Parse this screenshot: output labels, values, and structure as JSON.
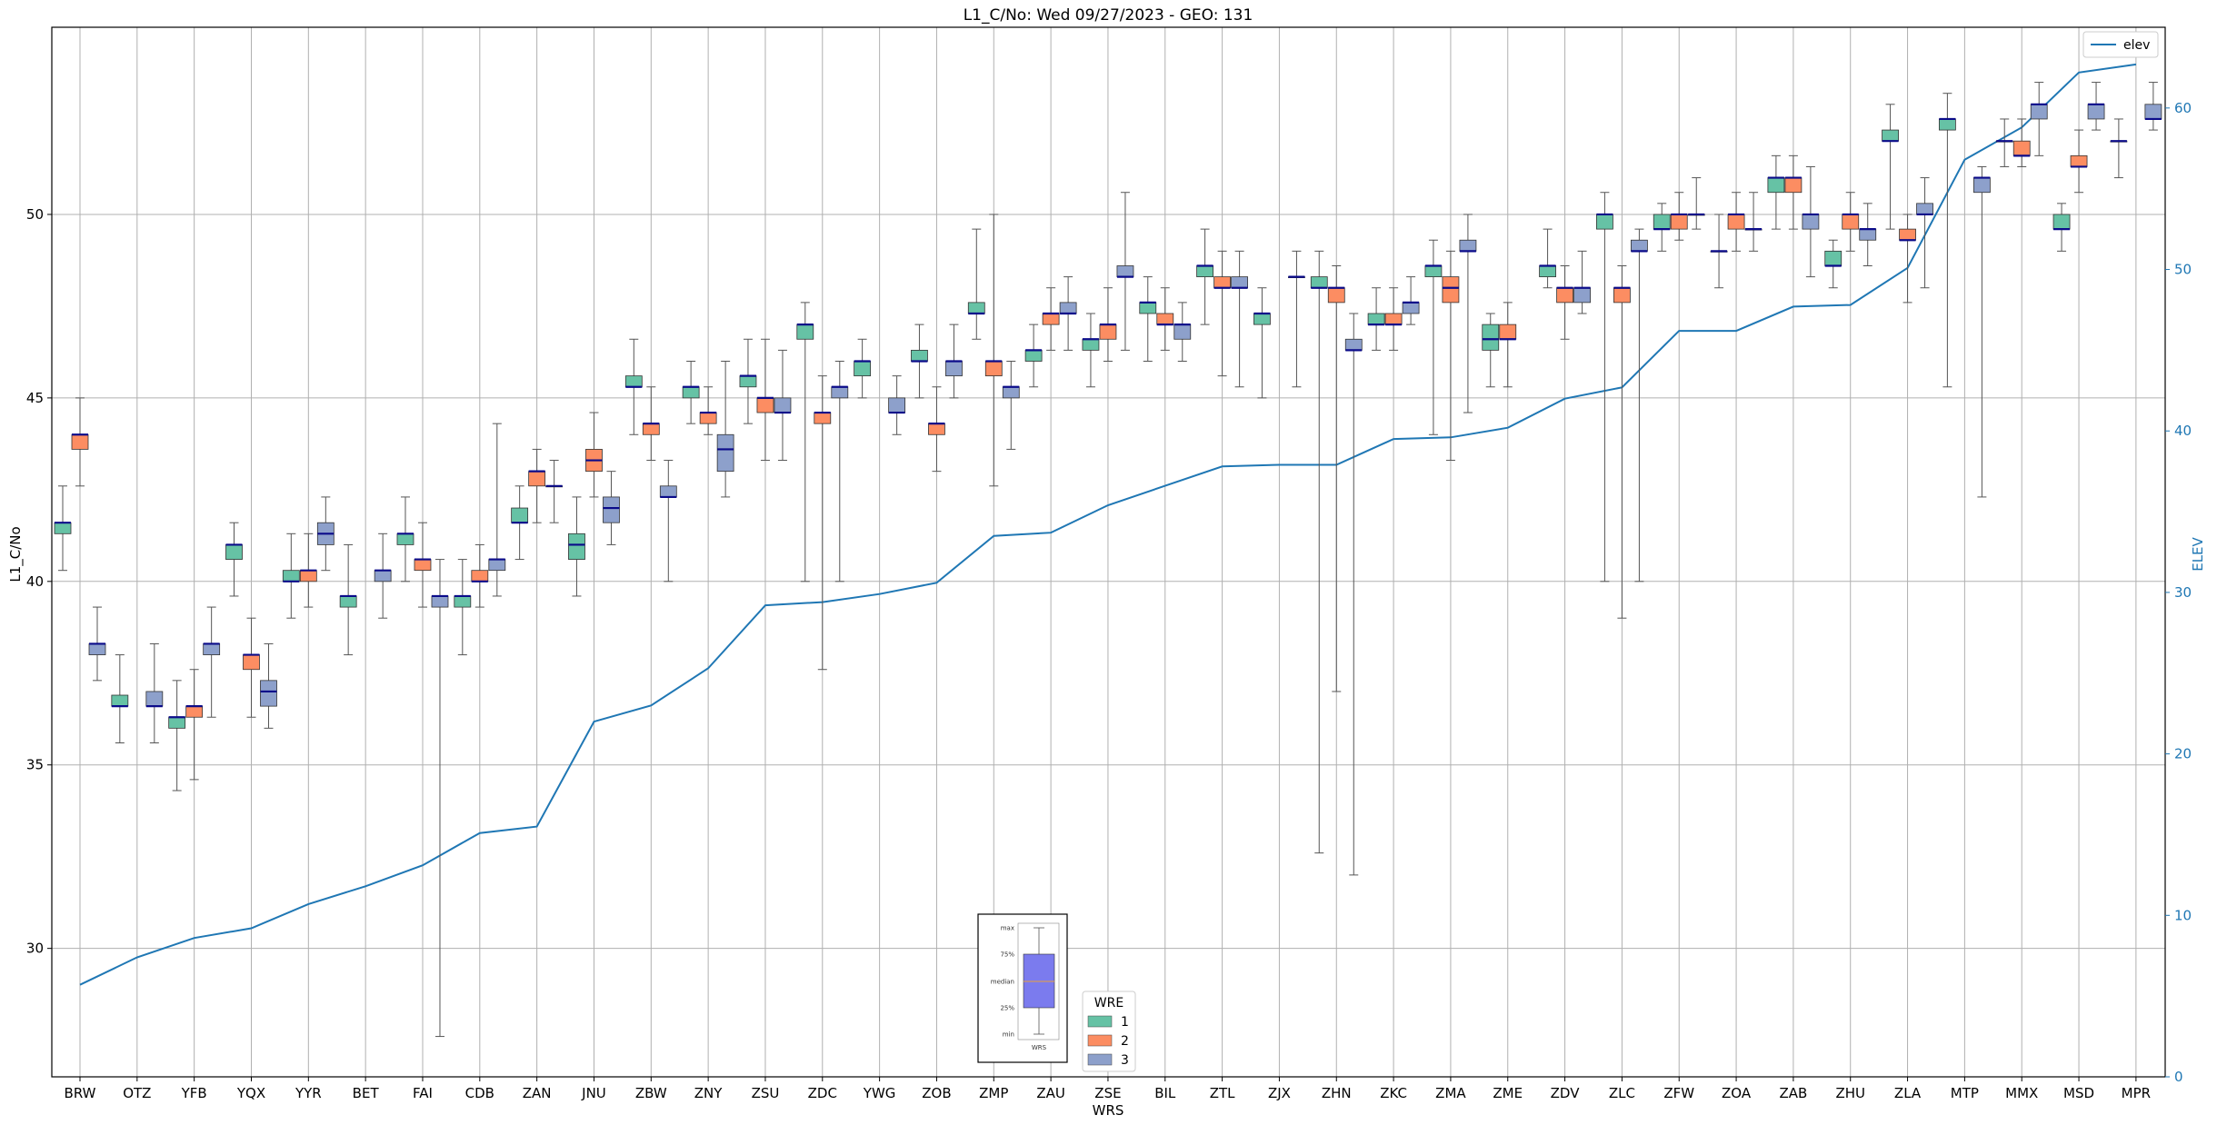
{
  "chart_data": {
    "type": "box",
    "title": "L1_C/No: Wed 09/27/2023 - GEO: 131",
    "xlabel": "WRS",
    "ylabel": "L1_C/No",
    "y2label": "ELEV",
    "ylim": [
      26.5,
      55.1
    ],
    "y2lim": [
      0,
      65
    ],
    "yticks": [
      30,
      35,
      40,
      45,
      50
    ],
    "y2ticks": [
      0,
      10,
      20,
      30,
      40,
      50,
      60
    ],
    "grid": true,
    "categories": [
      "BRW",
      "OTZ",
      "YFB",
      "YQX",
      "YYR",
      "BET",
      "FAI",
      "CDB",
      "ZAN",
      "JNU",
      "ZBW",
      "ZNY",
      "ZSU",
      "ZDC",
      "YWG",
      "ZOB",
      "ZMP",
      "ZAU",
      "ZSE",
      "BIL",
      "ZTL",
      "ZJX",
      "ZHN",
      "ZKC",
      "ZMA",
      "ZME",
      "ZDV",
      "ZLC",
      "ZFW",
      "ZOA",
      "ZAB",
      "ZHU",
      "ZLA",
      "MTP",
      "MMX",
      "MSD",
      "MPR"
    ],
    "legend": {
      "title": "WRE",
      "placement": "bottom-center",
      "entries": [
        {
          "label": "1",
          "color": "#66c2a5"
        },
        {
          "label": "2",
          "color": "#fc8d62"
        },
        {
          "label": "3",
          "color": "#8da0cb"
        }
      ]
    },
    "line_legend": {
      "label": "elev",
      "color": "#1f77b4",
      "placement": "top-right"
    },
    "elev": [
      5.7,
      7.4,
      8.6,
      9.2,
      10.7,
      11.8,
      13.1,
      15.1,
      15.5,
      22.0,
      23.0,
      25.3,
      29.2,
      29.4,
      29.9,
      30.6,
      33.5,
      33.7,
      35.4,
      36.6,
      37.8,
      37.9,
      37.9,
      39.5,
      39.6,
      40.2,
      42.0,
      42.7,
      46.2,
      46.2,
      47.7,
      47.8,
      50.1,
      56.8,
      58.8,
      62.2,
      62.7
    ],
    "wre1": {
      "name": "1",
      "boxes": [
        {
          "cat": "BRW",
          "min": 40.3,
          "q1": 41.3,
          "median": 41.6,
          "q3": 41.6,
          "max": 42.6
        },
        {
          "cat": "OTZ",
          "min": 35.6,
          "q1": 36.6,
          "median": 36.6,
          "q3": 36.9,
          "max": 38.0
        },
        {
          "cat": "YFB",
          "min": 34.3,
          "q1": 36.0,
          "median": 36.3,
          "q3": 36.3,
          "max": 37.3
        },
        {
          "cat": "YQX",
          "min": 39.6,
          "q1": 40.6,
          "median": 41.0,
          "q3": 41.0,
          "max": 41.6
        },
        {
          "cat": "YYR",
          "min": 39.0,
          "q1": 40.0,
          "median": 40.0,
          "q3": 40.3,
          "max": 41.3
        },
        {
          "cat": "BET",
          "min": 38.0,
          "q1": 39.3,
          "median": 39.6,
          "q3": 39.6,
          "max": 41.0
        },
        {
          "cat": "FAI",
          "min": 40.0,
          "q1": 41.0,
          "median": 41.3,
          "q3": 41.3,
          "max": 42.3
        },
        {
          "cat": "CDB",
          "min": 38.0,
          "q1": 39.3,
          "median": 39.6,
          "q3": 39.6,
          "max": 40.6
        },
        {
          "cat": "ZAN",
          "min": 40.6,
          "q1": 41.6,
          "median": 41.6,
          "q3": 42.0,
          "max": 42.6
        },
        {
          "cat": "JNU",
          "min": 39.6,
          "q1": 40.6,
          "median": 41.0,
          "q3": 41.3,
          "max": 42.3
        },
        {
          "cat": "ZBW",
          "min": 44.0,
          "q1": 45.3,
          "median": 45.3,
          "q3": 45.6,
          "max": 46.6
        },
        {
          "cat": "ZNY",
          "min": 44.3,
          "q1": 45.0,
          "median": 45.3,
          "q3": 45.3,
          "max": 46.0
        },
        {
          "cat": "ZSU",
          "min": 44.3,
          "q1": 45.3,
          "median": 45.6,
          "q3": 45.6,
          "max": 46.6
        },
        {
          "cat": "ZDC",
          "min": 40.0,
          "q1": 46.6,
          "median": 47.0,
          "q3": 47.0,
          "max": 47.6
        },
        {
          "cat": "YWG",
          "min": 45.0,
          "q1": 45.6,
          "median": 46.0,
          "q3": 46.0,
          "max": 46.6
        },
        {
          "cat": "ZOB",
          "min": 45.0,
          "q1": 46.0,
          "median": 46.0,
          "q3": 46.3,
          "max": 47.0
        },
        {
          "cat": "ZMP",
          "min": 46.6,
          "q1": 47.3,
          "median": 47.3,
          "q3": 47.6,
          "max": 49.6
        },
        {
          "cat": "ZAU",
          "min": 45.3,
          "q1": 46.0,
          "median": 46.3,
          "q3": 46.3,
          "max": 47.0
        },
        {
          "cat": "ZSE",
          "min": 45.3,
          "q1": 46.3,
          "median": 46.6,
          "q3": 46.6,
          "max": 47.3
        },
        {
          "cat": "BIL",
          "min": 46.0,
          "q1": 47.3,
          "median": 47.6,
          "q3": 47.6,
          "max": 48.3
        },
        {
          "cat": "ZTL",
          "min": 47.0,
          "q1": 48.3,
          "median": 48.6,
          "q3": 48.6,
          "max": 49.6
        },
        {
          "cat": "ZJX",
          "min": 45.0,
          "q1": 47.0,
          "median": 47.3,
          "q3": 47.3,
          "max": 48.0
        },
        {
          "cat": "ZHN",
          "min": 32.6,
          "q1": 48.0,
          "median": 48.0,
          "q3": 48.3,
          "max": 49.0
        },
        {
          "cat": "ZKC",
          "min": 46.3,
          "q1": 47.0,
          "median": 47.0,
          "q3": 47.3,
          "max": 48.0
        },
        {
          "cat": "ZMA",
          "min": 44.0,
          "q1": 48.3,
          "median": 48.6,
          "q3": 48.6,
          "max": 49.3
        },
        {
          "cat": "ZME",
          "min": 45.3,
          "q1": 46.3,
          "median": 46.6,
          "q3": 47.0,
          "max": 47.3
        },
        {
          "cat": "ZDV",
          "min": 48.0,
          "q1": 48.3,
          "median": 48.6,
          "q3": 48.6,
          "max": 49.6
        },
        {
          "cat": "ZLC",
          "min": 40.0,
          "q1": 49.6,
          "median": 50.0,
          "q3": 50.0,
          "max": 50.6
        },
        {
          "cat": "ZFW",
          "min": 49.0,
          "q1": 49.6,
          "median": 49.6,
          "q3": 50.0,
          "max": 50.3
        },
        {
          "cat": "ZOA",
          "min": 48.0,
          "q1": 49.0,
          "median": 49.0,
          "q3": 49.0,
          "max": 50.0
        },
        {
          "cat": "ZAB",
          "min": 49.6,
          "q1": 50.6,
          "median": 51.0,
          "q3": 51.0,
          "max": 51.6
        },
        {
          "cat": "ZHU",
          "min": 48.0,
          "q1": 48.6,
          "median": 48.6,
          "q3": 49.0,
          "max": 49.3
        },
        {
          "cat": "ZLA",
          "min": 49.6,
          "q1": 52.0,
          "median": 52.0,
          "q3": 52.3,
          "max": 53.0
        },
        {
          "cat": "MTP",
          "min": 45.3,
          "q1": 52.3,
          "median": 52.6,
          "q3": 52.6,
          "max": 53.3
        },
        {
          "cat": "MMX",
          "min": 51.3,
          "q1": 52.0,
          "median": 52.0,
          "q3": 52.0,
          "max": 52.6
        },
        {
          "cat": "MSD",
          "min": 49.0,
          "q1": 49.6,
          "median": 49.6,
          "q3": 50.0,
          "max": 50.3
        },
        {
          "cat": "MPR",
          "min": 51.0,
          "q1": 52.0,
          "median": 52.0,
          "q3": 52.0,
          "max": 52.6
        }
      ]
    },
    "wre2": {
      "name": "2",
      "boxes": [
        {
          "cat": "BRW",
          "min": 42.6,
          "q1": 43.6,
          "median": 44.0,
          "q3": 44.0,
          "max": 45.0
        },
        {
          "cat": "YFB",
          "min": 34.6,
          "q1": 36.3,
          "median": 36.6,
          "q3": 36.6,
          "max": 37.6
        },
        {
          "cat": "YQX",
          "min": 36.3,
          "q1": 37.6,
          "median": 38.0,
          "q3": 38.0,
          "max": 39.0
        },
        {
          "cat": "YYR",
          "min": 39.3,
          "q1": 40.0,
          "median": 40.3,
          "q3": 40.3,
          "max": 41.3
        },
        {
          "cat": "FAI",
          "min": 39.3,
          "q1": 40.3,
          "median": 40.6,
          "q3": 40.6,
          "max": 41.6
        },
        {
          "cat": "CDB",
          "min": 39.3,
          "q1": 40.0,
          "median": 40.0,
          "q3": 40.3,
          "max": 41.0
        },
        {
          "cat": "ZAN",
          "min": 41.6,
          "q1": 42.6,
          "median": 43.0,
          "q3": 43.0,
          "max": 43.6
        },
        {
          "cat": "JNU",
          "min": 42.3,
          "q1": 43.0,
          "median": 43.3,
          "q3": 43.6,
          "max": 44.6
        },
        {
          "cat": "ZBW",
          "min": 43.3,
          "q1": 44.0,
          "median": 44.3,
          "q3": 44.3,
          "max": 45.3
        },
        {
          "cat": "ZNY",
          "min": 44.0,
          "q1": 44.3,
          "median": 44.6,
          "q3": 44.6,
          "max": 45.3
        },
        {
          "cat": "ZSU",
          "min": 43.3,
          "q1": 44.6,
          "median": 45.0,
          "q3": 45.0,
          "max": 46.6
        },
        {
          "cat": "ZDC",
          "min": 37.6,
          "q1": 44.3,
          "median": 44.6,
          "q3": 44.6,
          "max": 45.6
        },
        {
          "cat": "ZOB",
          "min": 43.0,
          "q1": 44.0,
          "median": 44.3,
          "q3": 44.3,
          "max": 45.3
        },
        {
          "cat": "ZMP",
          "min": 42.6,
          "q1": 45.6,
          "median": 46.0,
          "q3": 46.0,
          "max": 50.0
        },
        {
          "cat": "ZAU",
          "min": 46.3,
          "q1": 47.0,
          "median": 47.3,
          "q3": 47.3,
          "max": 48.0
        },
        {
          "cat": "ZSE",
          "min": 46.0,
          "q1": 46.6,
          "median": 47.0,
          "q3": 47.0,
          "max": 48.0
        },
        {
          "cat": "BIL",
          "min": 46.3,
          "q1": 47.0,
          "median": 47.0,
          "q3": 47.3,
          "max": 48.0
        },
        {
          "cat": "ZTL",
          "min": 45.6,
          "q1": 48.0,
          "median": 48.0,
          "q3": 48.3,
          "max": 49.0
        },
        {
          "cat": "ZHN",
          "min": 37.0,
          "q1": 47.6,
          "median": 48.0,
          "q3": 48.0,
          "max": 48.6
        },
        {
          "cat": "ZKC",
          "min": 46.3,
          "q1": 47.0,
          "median": 47.0,
          "q3": 47.3,
          "max": 48.0
        },
        {
          "cat": "ZMA",
          "min": 43.3,
          "q1": 47.6,
          "median": 48.0,
          "q3": 48.3,
          "max": 49.0
        },
        {
          "cat": "ZME",
          "min": 45.3,
          "q1": 46.6,
          "median": 46.6,
          "q3": 47.0,
          "max": 47.6
        },
        {
          "cat": "ZDV",
          "min": 46.6,
          "q1": 47.6,
          "median": 48.0,
          "q3": 48.0,
          "max": 48.6
        },
        {
          "cat": "ZLC",
          "min": 39.0,
          "q1": 47.6,
          "median": 48.0,
          "q3": 48.0,
          "max": 48.6
        },
        {
          "cat": "ZFW",
          "min": 49.3,
          "q1": 49.6,
          "median": 50.0,
          "q3": 50.0,
          "max": 50.6
        },
        {
          "cat": "ZOA",
          "min": 49.0,
          "q1": 49.6,
          "median": 50.0,
          "q3": 50.0,
          "max": 50.6
        },
        {
          "cat": "ZAB",
          "min": 49.6,
          "q1": 50.6,
          "median": 51.0,
          "q3": 51.0,
          "max": 51.6
        },
        {
          "cat": "ZHU",
          "min": 49.0,
          "q1": 49.6,
          "median": 50.0,
          "q3": 50.0,
          "max": 50.6
        },
        {
          "cat": "ZLA",
          "min": 47.6,
          "q1": 49.3,
          "median": 49.3,
          "q3": 49.6,
          "max": 50.0
        },
        {
          "cat": "MMX",
          "min": 51.3,
          "q1": 51.6,
          "median": 51.6,
          "q3": 52.0,
          "max": 52.6
        },
        {
          "cat": "MSD",
          "min": 50.6,
          "q1": 51.3,
          "median": 51.3,
          "q3": 51.6,
          "max": 52.3
        }
      ]
    },
    "wre3": {
      "name": "3",
      "boxes": [
        {
          "cat": "BRW",
          "min": 37.3,
          "q1": 38.0,
          "median": 38.3,
          "q3": 38.3,
          "max": 39.3
        },
        {
          "cat": "OTZ",
          "min": 35.6,
          "q1": 36.6,
          "median": 36.6,
          "q3": 37.0,
          "max": 38.3
        },
        {
          "cat": "YFB",
          "min": 36.3,
          "q1": 38.0,
          "median": 38.3,
          "q3": 38.3,
          "max": 39.3
        },
        {
          "cat": "YQX",
          "min": 36.0,
          "q1": 36.6,
          "median": 37.0,
          "q3": 37.3,
          "max": 38.3
        },
        {
          "cat": "YYR",
          "min": 40.3,
          "q1": 41.0,
          "median": 41.3,
          "q3": 41.6,
          "max": 42.3
        },
        {
          "cat": "BET",
          "min": 39.0,
          "q1": 40.0,
          "median": 40.3,
          "q3": 40.3,
          "max": 41.3
        },
        {
          "cat": "FAI",
          "min": 27.6,
          "q1": 39.3,
          "median": 39.6,
          "q3": 39.6,
          "max": 40.6
        },
        {
          "cat": "CDB",
          "min": 39.6,
          "q1": 40.3,
          "median": 40.6,
          "q3": 40.6,
          "max": 44.3
        },
        {
          "cat": "ZAN",
          "min": 41.6,
          "q1": 42.6,
          "median": 42.6,
          "q3": 42.6,
          "max": 43.3
        },
        {
          "cat": "JNU",
          "min": 41.0,
          "q1": 41.6,
          "median": 42.0,
          "q3": 42.3,
          "max": 43.0
        },
        {
          "cat": "ZBW",
          "min": 40.0,
          "q1": 42.3,
          "median": 42.3,
          "q3": 42.6,
          "max": 43.3
        },
        {
          "cat": "ZNY",
          "min": 42.3,
          "q1": 43.0,
          "median": 43.6,
          "q3": 44.0,
          "max": 46.0
        },
        {
          "cat": "ZSU",
          "min": 43.3,
          "q1": 44.6,
          "median": 44.6,
          "q3": 45.0,
          "max": 46.3
        },
        {
          "cat": "ZDC",
          "min": 40.0,
          "q1": 45.0,
          "median": 45.3,
          "q3": 45.3,
          "max": 46.0
        },
        {
          "cat": "YWG",
          "min": 44.0,
          "q1": 44.6,
          "median": 44.6,
          "q3": 45.0,
          "max": 45.6
        },
        {
          "cat": "ZOB",
          "min": 45.0,
          "q1": 45.6,
          "median": 46.0,
          "q3": 46.0,
          "max": 47.0
        },
        {
          "cat": "ZMP",
          "min": 43.6,
          "q1": 45.0,
          "median": 45.3,
          "q3": 45.3,
          "max": 46.0
        },
        {
          "cat": "ZAU",
          "min": 46.3,
          "q1": 47.3,
          "median": 47.3,
          "q3": 47.6,
          "max": 48.3
        },
        {
          "cat": "ZSE",
          "min": 46.3,
          "q1": 48.3,
          "median": 48.3,
          "q3": 48.6,
          "max": 50.6
        },
        {
          "cat": "BIL",
          "min": 46.0,
          "q1": 46.6,
          "median": 47.0,
          "q3": 47.0,
          "max": 47.6
        },
        {
          "cat": "ZTL",
          "min": 45.3,
          "q1": 48.0,
          "median": 48.0,
          "q3": 48.3,
          "max": 49.0
        },
        {
          "cat": "ZJX",
          "min": 45.3,
          "q1": 48.3,
          "median": 48.3,
          "q3": 48.3,
          "max": 49.0
        },
        {
          "cat": "ZHN",
          "min": 32.0,
          "q1": 46.3,
          "median": 46.3,
          "q3": 46.6,
          "max": 47.3
        },
        {
          "cat": "ZKC",
          "min": 47.0,
          "q1": 47.3,
          "median": 47.6,
          "q3": 47.6,
          "max": 48.3
        },
        {
          "cat": "ZMA",
          "min": 44.6,
          "q1": 49.0,
          "median": 49.0,
          "q3": 49.3,
          "max": 50.0
        },
        {
          "cat": "ZDV",
          "min": 47.3,
          "q1": 47.6,
          "median": 48.0,
          "q3": 48.0,
          "max": 49.0
        },
        {
          "cat": "ZLC",
          "min": 40.0,
          "q1": 49.0,
          "median": 49.0,
          "q3": 49.3,
          "max": 49.6
        },
        {
          "cat": "ZFW",
          "min": 49.6,
          "q1": 50.0,
          "median": 50.0,
          "q3": 50.0,
          "max": 51.0
        },
        {
          "cat": "ZOA",
          "min": 49.0,
          "q1": 49.6,
          "median": 49.6,
          "q3": 49.6,
          "max": 50.6
        },
        {
          "cat": "ZAB",
          "min": 48.3,
          "q1": 49.6,
          "median": 50.0,
          "q3": 50.0,
          "max": 51.3
        },
        {
          "cat": "ZHU",
          "min": 48.6,
          "q1": 49.3,
          "median": 49.6,
          "q3": 49.6,
          "max": 50.3
        },
        {
          "cat": "ZLA",
          "min": 48.0,
          "q1": 50.0,
          "median": 50.0,
          "q3": 50.3,
          "max": 51.0
        },
        {
          "cat": "MTP",
          "min": 42.3,
          "q1": 50.6,
          "median": 51.0,
          "q3": 51.0,
          "max": 51.3
        },
        {
          "cat": "MMX",
          "min": 51.6,
          "q1": 52.6,
          "median": 53.0,
          "q3": 53.0,
          "max": 53.6
        },
        {
          "cat": "MSD",
          "min": 52.3,
          "q1": 52.6,
          "median": 53.0,
          "q3": 53.0,
          "max": 53.6
        },
        {
          "cat": "MPR",
          "min": 52.3,
          "q1": 52.6,
          "median": 52.6,
          "q3": 53.0,
          "max": 53.6
        }
      ]
    },
    "inset": {
      "labels": [
        "max",
        "75%",
        "median",
        "25%",
        "min"
      ],
      "xlabel": "WRS",
      "color": "#7b7bee"
    }
  }
}
